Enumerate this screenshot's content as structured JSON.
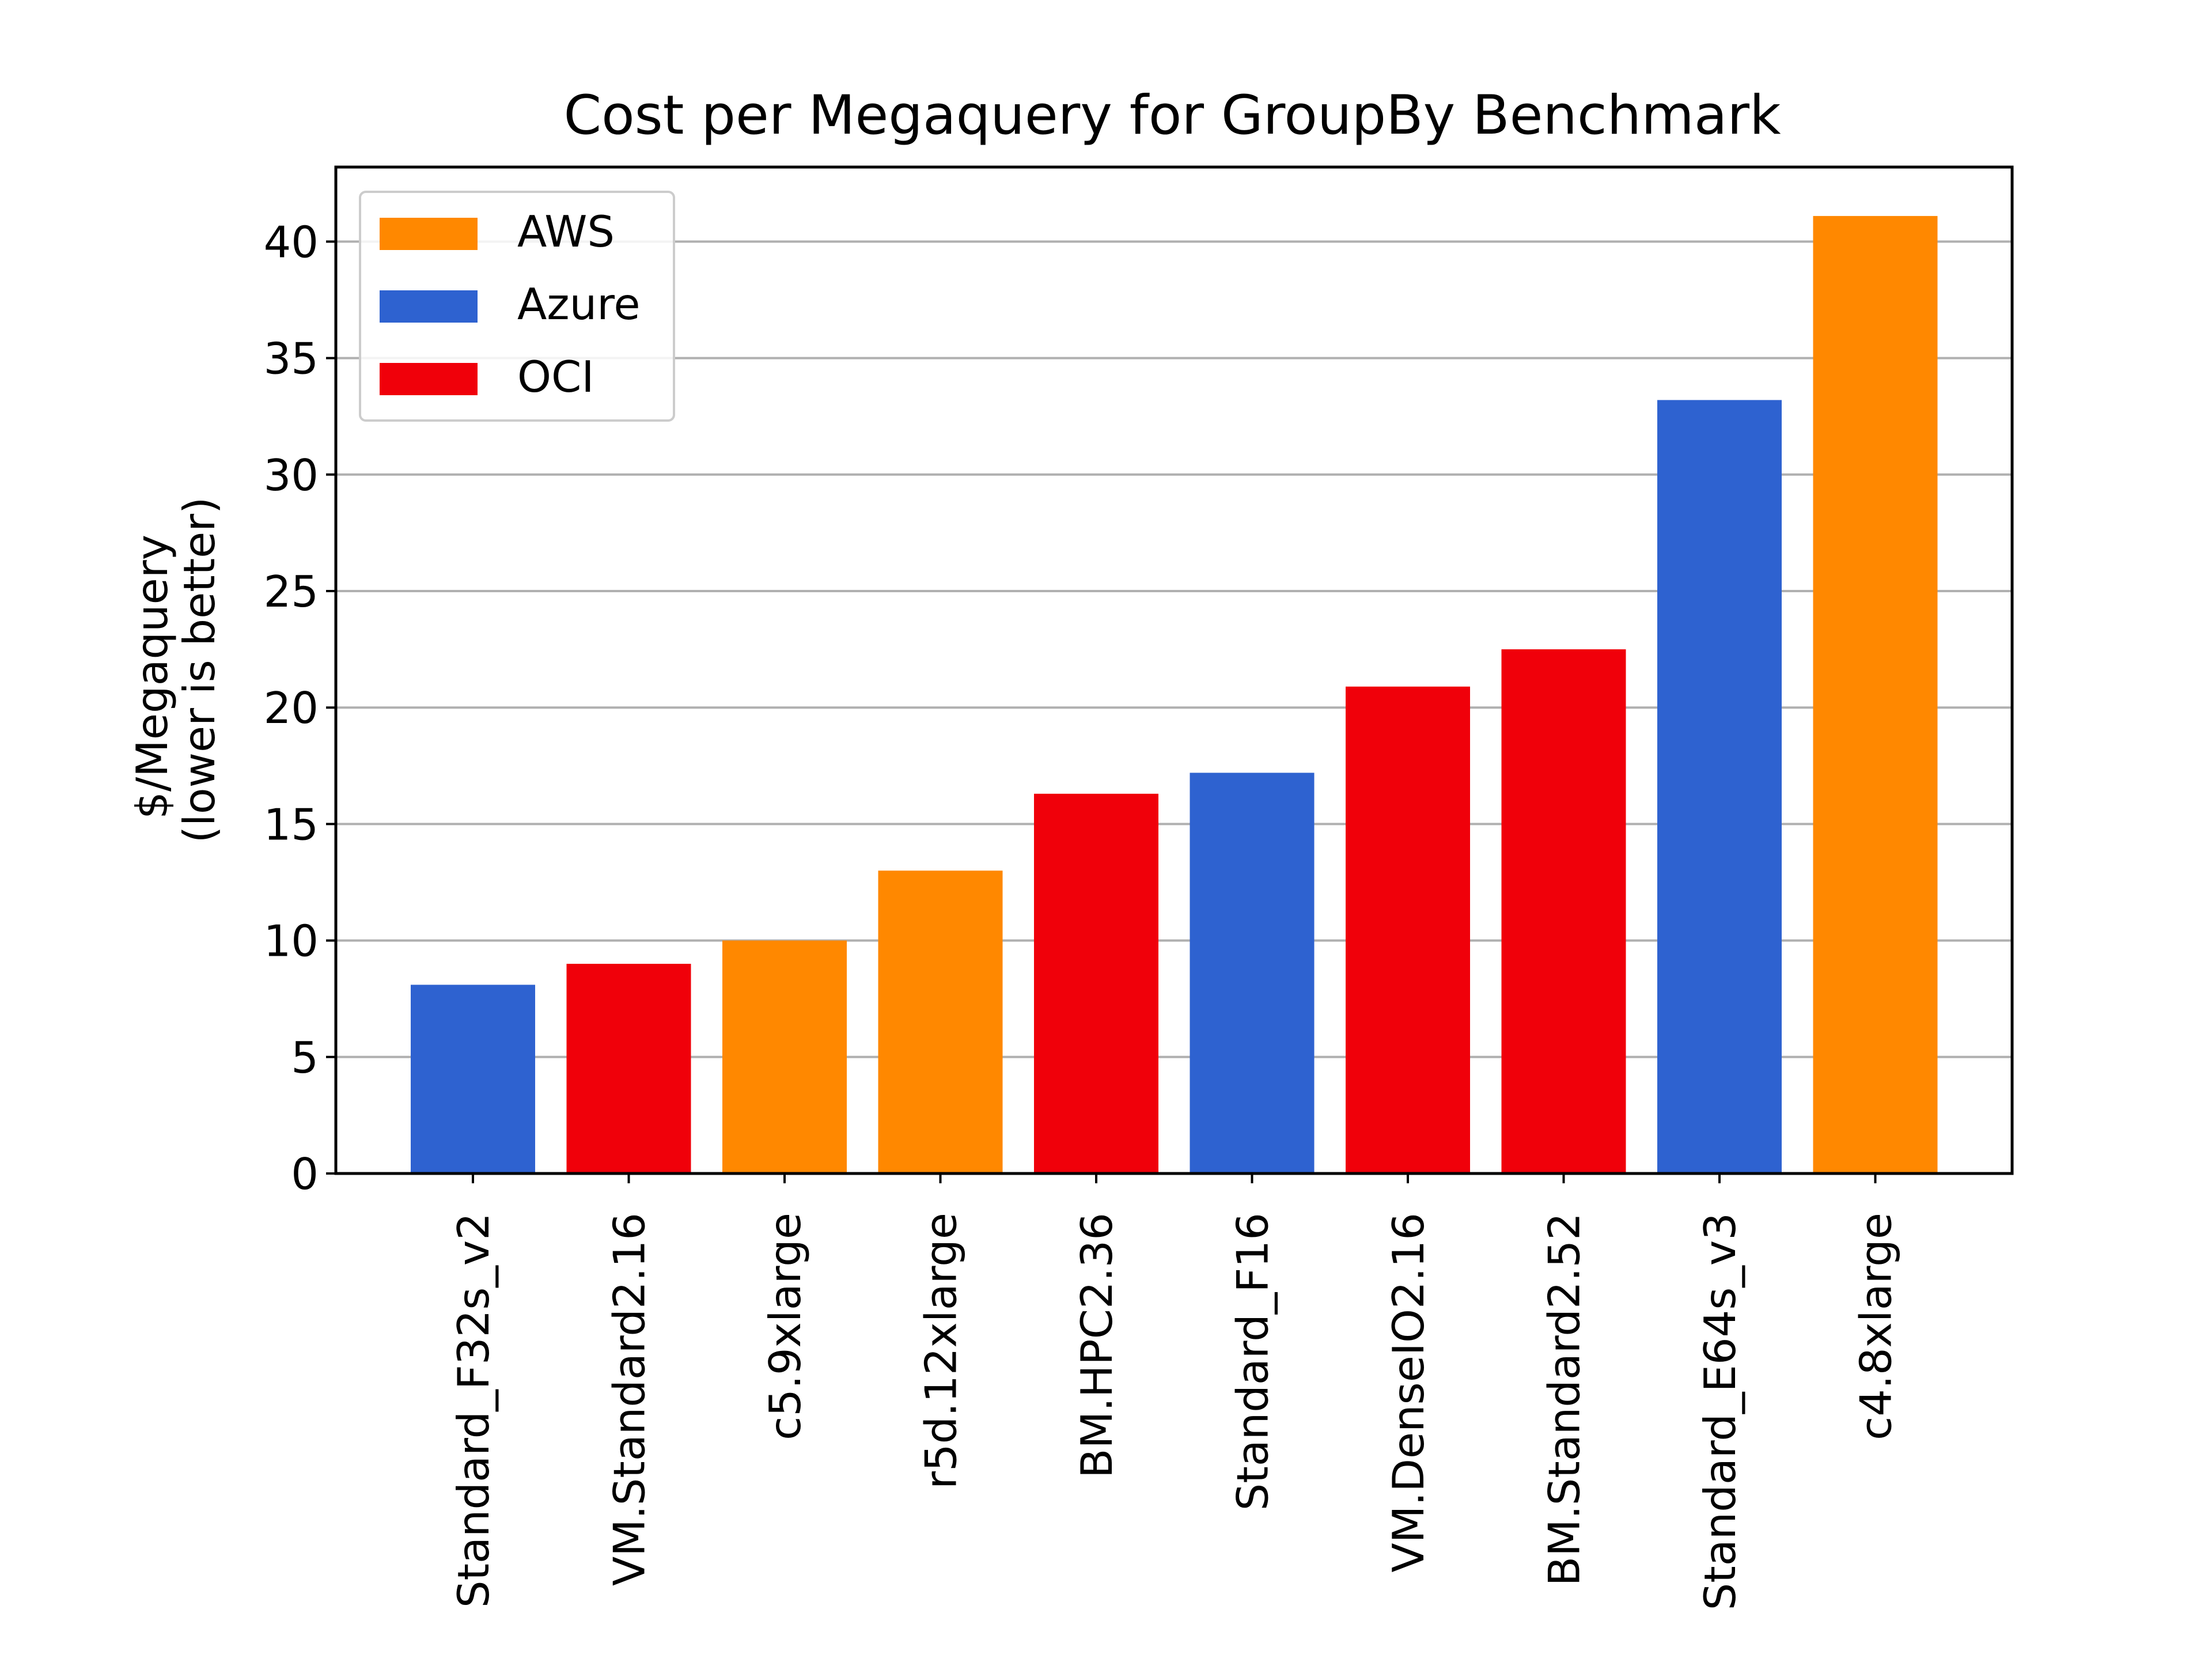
{
  "chart_data": {
    "type": "bar",
    "title": "Cost per Megaquery for GroupBy Benchmark",
    "xlabel": "",
    "ylabel_lines": [
      "$/Megaquery",
      "(lower is better)"
    ],
    "ylim": [
      0,
      43.2
    ],
    "yticks": [
      0,
      5,
      10,
      15,
      20,
      25,
      30,
      35,
      40
    ],
    "grid": "y",
    "legend": {
      "position": "top-left",
      "entries": [
        {
          "label": "AWS",
          "color": "#ff8800"
        },
        {
          "label": "Azure",
          "color": "#2e62d0"
        },
        {
          "label": "OCI",
          "color": "#f0000a"
        }
      ]
    },
    "categories": [
      "Standard_F32s_v2",
      "VM.Standard2.16",
      "c5.9xlarge",
      "r5d.12xlarge",
      "BM.HPC2.36",
      "Standard_F16",
      "VM.DenseIO2.16",
      "BM.Standard2.52",
      "Standard_E64s_v3",
      "c4.8xlarge"
    ],
    "providers": [
      "Azure",
      "OCI",
      "AWS",
      "AWS",
      "OCI",
      "Azure",
      "OCI",
      "OCI",
      "Azure",
      "AWS"
    ],
    "values": [
      8.1,
      9.0,
      10.0,
      13.0,
      16.3,
      17.2,
      20.9,
      22.5,
      33.2,
      41.1
    ]
  }
}
